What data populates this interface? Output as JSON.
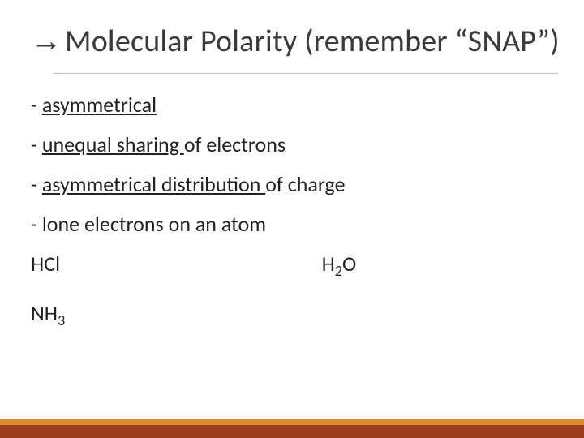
{
  "title": {
    "arrow_glyph": "→",
    "text": "Molecular Polarity (remember “SNAP”)",
    "color": "#3a3a3a",
    "fontsize": 38
  },
  "hr": {
    "color": "#bdbdbd"
  },
  "body": {
    "fontsize": 26,
    "color": "#222222",
    "lines": [
      {
        "prefix": "- ",
        "underlined": "asymmetrical",
        "suffix": ""
      },
      {
        "prefix": "- ",
        "underlined": "unequal sharing ",
        "suffix": "of electrons"
      },
      {
        "prefix": "- ",
        "underlined": "asymmetrical distribution ",
        "suffix": "of charge"
      },
      {
        "prefix": "- ",
        "underlined": "",
        "suffix": "lone electrons on an atom"
      }
    ],
    "formulas_row1": {
      "left": {
        "base": "HCl",
        "sub": ""
      },
      "right": {
        "base": "H",
        "sub": "2",
        "tail": "O"
      }
    },
    "formulas_row2": {
      "left": {
        "base": "NH",
        "sub": "3",
        "tail": ""
      }
    }
  },
  "bands": {
    "outer_color": "#d98f2e",
    "inner_color": "#9c3b1a",
    "outer_height": 24,
    "inner_height": 16
  },
  "background_color": "#ffffff"
}
